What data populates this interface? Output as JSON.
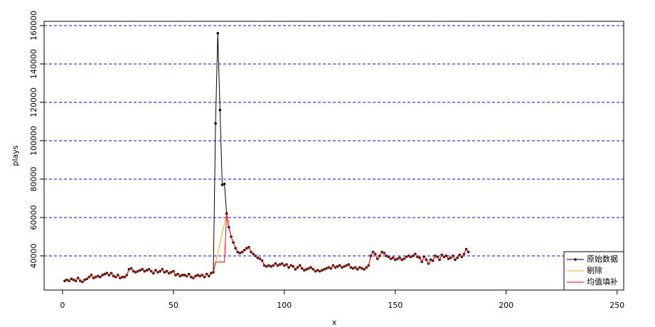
{
  "chart_data": {
    "type": "line",
    "y_label": "plays",
    "x_label": "x",
    "xlim": [
      -8.3,
      253
    ],
    "xticks": [
      0,
      50,
      100,
      150,
      200,
      250
    ],
    "ylim": [
      22200,
      162200
    ],
    "yticks": [
      40000,
      60000,
      80000,
      100000,
      120000,
      140000,
      160000
    ],
    "grid": true,
    "grid_color": "#0000ff",
    "legend": "bottom-right",
    "x": [
      1,
      2,
      3,
      4,
      5,
      6,
      7,
      8,
      9,
      10,
      11,
      12,
      13,
      14,
      15,
      16,
      17,
      18,
      19,
      20,
      21,
      22,
      23,
      24,
      25,
      26,
      27,
      28,
      29,
      30,
      31,
      32,
      33,
      34,
      35,
      36,
      37,
      38,
      39,
      40,
      41,
      42,
      43,
      44,
      45,
      46,
      47,
      48,
      49,
      50,
      51,
      52,
      53,
      54,
      55,
      56,
      57,
      58,
      59,
      60,
      61,
      62,
      63,
      64,
      65,
      66,
      67,
      68,
      69,
      70,
      71,
      72,
      73,
      74,
      75,
      76,
      77,
      78,
      79,
      80,
      81,
      82,
      83,
      84,
      85,
      86,
      87,
      88,
      89,
      90,
      91,
      92,
      93,
      94,
      95,
      96,
      97,
      98,
      99,
      100,
      101,
      102,
      103,
      104,
      105,
      106,
      107,
      108,
      109,
      110,
      111,
      112,
      113,
      114,
      115,
      116,
      117,
      118,
      119,
      120,
      121,
      122,
      123,
      124,
      125,
      126,
      127,
      128,
      129,
      130,
      131,
      132,
      133,
      134,
      135,
      136,
      137,
      138,
      139,
      140,
      141,
      142,
      143,
      144,
      145,
      146,
      147,
      148,
      149,
      150,
      151,
      152,
      153,
      154,
      155,
      156,
      157,
      158,
      159,
      160,
      161,
      162,
      163,
      164,
      165,
      166,
      167,
      168,
      169,
      170,
      171,
      172,
      173,
      174,
      175,
      176,
      177,
      178,
      179,
      180,
      181,
      182,
      183
    ],
    "series": [
      {
        "name": "原始数据",
        "color": "#000000",
        "markers": true,
        "values": [
          27000,
          27500,
          27000,
          28000,
          27500,
          27000,
          28500,
          27000,
          26500,
          27500,
          28000,
          29000,
          30000,
          28500,
          29000,
          29500,
          29000,
          30000,
          30500,
          31000,
          30000,
          31000,
          29500,
          29000,
          30000,
          28500,
          29000,
          29000,
          30000,
          33000,
          33500,
          32000,
          31500,
          32000,
          32500,
          33000,
          32000,
          32500,
          33000,
          32000,
          31000,
          32500,
          31500,
          32000,
          33000,
          31500,
          32000,
          31000,
          31500,
          32000,
          30000,
          30500,
          29500,
          30000,
          30000,
          29500,
          30500,
          29000,
          28500,
          29500,
          30000,
          29500,
          30000,
          29000,
          30500,
          29500,
          31000,
          31500,
          109000,
          156000,
          116000,
          77000,
          77500,
          62000,
          55000,
          50000,
          47000,
          44000,
          42000,
          41500,
          42000,
          43000,
          44000,
          44500,
          42000,
          41000,
          40000,
          39000,
          38500,
          37500,
          35000,
          34500,
          35000,
          34500,
          35000,
          36000,
          35000,
          35500,
          36000,
          35000,
          35500,
          34000,
          35000,
          34500,
          33000,
          34000,
          35000,
          33500,
          32500,
          33000,
          33500,
          34000,
          33000,
          32000,
          32500,
          32000,
          32500,
          33000,
          33500,
          34000,
          33500,
          35000,
          34000,
          34500,
          35000,
          34000,
          34500,
          35000,
          35500,
          34000,
          33500,
          34000,
          33000,
          34000,
          33500,
          33000,
          34000,
          35000,
          40000,
          42000,
          41000,
          38500,
          40000,
          42000,
          41500,
          40000,
          39500,
          38500,
          39000,
          38000,
          38500,
          39000,
          38000,
          38500,
          39500,
          40000,
          39500,
          40000,
          41000,
          39500,
          39000,
          37000,
          39500,
          38000,
          36000,
          38000,
          37500,
          40000,
          39500,
          38000,
          40500,
          39500,
          40000,
          38500,
          39000,
          40000,
          38000,
          39000,
          40500,
          39500,
          41000,
          43500,
          42000
        ]
      },
      {
        "name": "剔除",
        "color": "#ffa500",
        "x": [
          1,
          2,
          3,
          4,
          5,
          6,
          7,
          8,
          9,
          10,
          11,
          12,
          13,
          14,
          15,
          16,
          17,
          18,
          19,
          20,
          21,
          22,
          23,
          24,
          25,
          26,
          27,
          28,
          29,
          30,
          31,
          32,
          33,
          34,
          35,
          36,
          37,
          38,
          39,
          40,
          41,
          42,
          43,
          44,
          45,
          46,
          47,
          48,
          49,
          50,
          51,
          52,
          53,
          54,
          55,
          56,
          57,
          58,
          59,
          60,
          61,
          62,
          63,
          64,
          65,
          66,
          67,
          68,
          74,
          75,
          76,
          77,
          78,
          79,
          80,
          81,
          82,
          83,
          84,
          85,
          86,
          87,
          88,
          89,
          90,
          91,
          92,
          93,
          94,
          95,
          96,
          97,
          98,
          99,
          100,
          101,
          102,
          103,
          104,
          105,
          106,
          107,
          108,
          109,
          110,
          111,
          112,
          113,
          114,
          115,
          116,
          117,
          118,
          119,
          120,
          121,
          122,
          123,
          124,
          125,
          126,
          127,
          128,
          129,
          130,
          131,
          132,
          133,
          134,
          135,
          136,
          137,
          138,
          139,
          140,
          141,
          142,
          143,
          144,
          145,
          146,
          147,
          148,
          149,
          150,
          151,
          152,
          153,
          154,
          155,
          156,
          157,
          158,
          159,
          160,
          161,
          162,
          163,
          164,
          165,
          166,
          167,
          168,
          169,
          170,
          171,
          172,
          173,
          174,
          175,
          176,
          177,
          178,
          179,
          180,
          181,
          182,
          183
        ],
        "values": [
          27000,
          27500,
          27000,
          28000,
          27500,
          27000,
          28500,
          27000,
          26500,
          27500,
          28000,
          29000,
          30000,
          28500,
          29000,
          29500,
          29000,
          30000,
          30500,
          31000,
          30000,
          31000,
          29500,
          29000,
          30000,
          28500,
          29000,
          29000,
          30000,
          33000,
          33500,
          32000,
          31500,
          32000,
          32500,
          33000,
          32000,
          32500,
          33000,
          32000,
          31000,
          32500,
          31500,
          32000,
          33000,
          31500,
          32000,
          31000,
          31500,
          32000,
          30000,
          30500,
          29500,
          30000,
          30000,
          29500,
          30500,
          29000,
          28500,
          29500,
          30000,
          29500,
          30000,
          29000,
          30500,
          29500,
          31000,
          31500,
          62000,
          55000,
          50000,
          47000,
          44000,
          42000,
          41500,
          42000,
          43000,
          44000,
          44500,
          42000,
          41000,
          40000,
          39000,
          38500,
          37500,
          35000,
          34500,
          35000,
          34500,
          35000,
          36000,
          35000,
          35500,
          36000,
          35000,
          35500,
          34000,
          35000,
          34500,
          33000,
          34000,
          35000,
          33500,
          32500,
          33000,
          33500,
          34000,
          33000,
          32000,
          32500,
          32000,
          32500,
          33000,
          33500,
          34000,
          33500,
          35000,
          34000,
          34500,
          35000,
          34000,
          34500,
          35000,
          35500,
          34000,
          33500,
          34000,
          33000,
          34000,
          33500,
          33000,
          34000,
          35000,
          40000,
          42000,
          41000,
          38500,
          40000,
          42000,
          41500,
          40000,
          39500,
          38500,
          39000,
          38000,
          38500,
          39000,
          38000,
          38500,
          39500,
          40000,
          39500,
          40000,
          41000,
          39500,
          39000,
          37000,
          39500,
          38000,
          36000,
          38000,
          37500,
          40000,
          39500,
          38000,
          40500,
          39500,
          40000,
          38500,
          39000,
          40000,
          38000,
          39000,
          40500,
          39500,
          41000,
          43500,
          42000
        ]
      },
      {
        "name": "均值填补",
        "color": "#ff0000",
        "values": [
          27000,
          27500,
          27000,
          28000,
          27500,
          27000,
          28500,
          27000,
          26500,
          27500,
          28000,
          29000,
          30000,
          28500,
          29000,
          29500,
          29000,
          30000,
          30500,
          31000,
          30000,
          31000,
          29500,
          29000,
          30000,
          28500,
          29000,
          29000,
          30000,
          33000,
          33500,
          32000,
          31500,
          32000,
          32500,
          33000,
          32000,
          32500,
          33000,
          32000,
          31000,
          32500,
          31500,
          32000,
          33000,
          31500,
          32000,
          31000,
          31500,
          32000,
          30000,
          30500,
          29500,
          30000,
          30000,
          29500,
          30500,
          29000,
          28500,
          29500,
          30000,
          29500,
          30000,
          29000,
          30500,
          29500,
          31000,
          31500,
          36800,
          36800,
          36800,
          36800,
          36800,
          62000,
          55000,
          50000,
          47000,
          44000,
          42000,
          41500,
          42000,
          43000,
          44000,
          44500,
          42000,
          41000,
          40000,
          39000,
          38500,
          37500,
          35000,
          34500,
          35000,
          34500,
          35000,
          36000,
          35000,
          35500,
          36000,
          35000,
          35500,
          34000,
          35000,
          34500,
          33000,
          34000,
          35000,
          33500,
          32500,
          33000,
          33500,
          34000,
          33000,
          32000,
          32500,
          32000,
          32500,
          33000,
          33500,
          34000,
          33500,
          35000,
          34000,
          34500,
          35000,
          34000,
          34500,
          35000,
          35500,
          34000,
          33500,
          34000,
          33000,
          34000,
          33500,
          33000,
          34000,
          35000,
          40000,
          42000,
          41000,
          38500,
          40000,
          42000,
          41500,
          40000,
          39500,
          38500,
          39000,
          38000,
          38500,
          39000,
          38000,
          38500,
          39500,
          40000,
          39500,
          40000,
          41000,
          39500,
          39000,
          37000,
          39500,
          38000,
          36000,
          38000,
          37500,
          40000,
          39500,
          38000,
          40500,
          39500,
          40000,
          38500,
          39000,
          40000,
          38000,
          39000,
          40500,
          39500,
          41000,
          43500,
          42000
        ]
      }
    ]
  }
}
